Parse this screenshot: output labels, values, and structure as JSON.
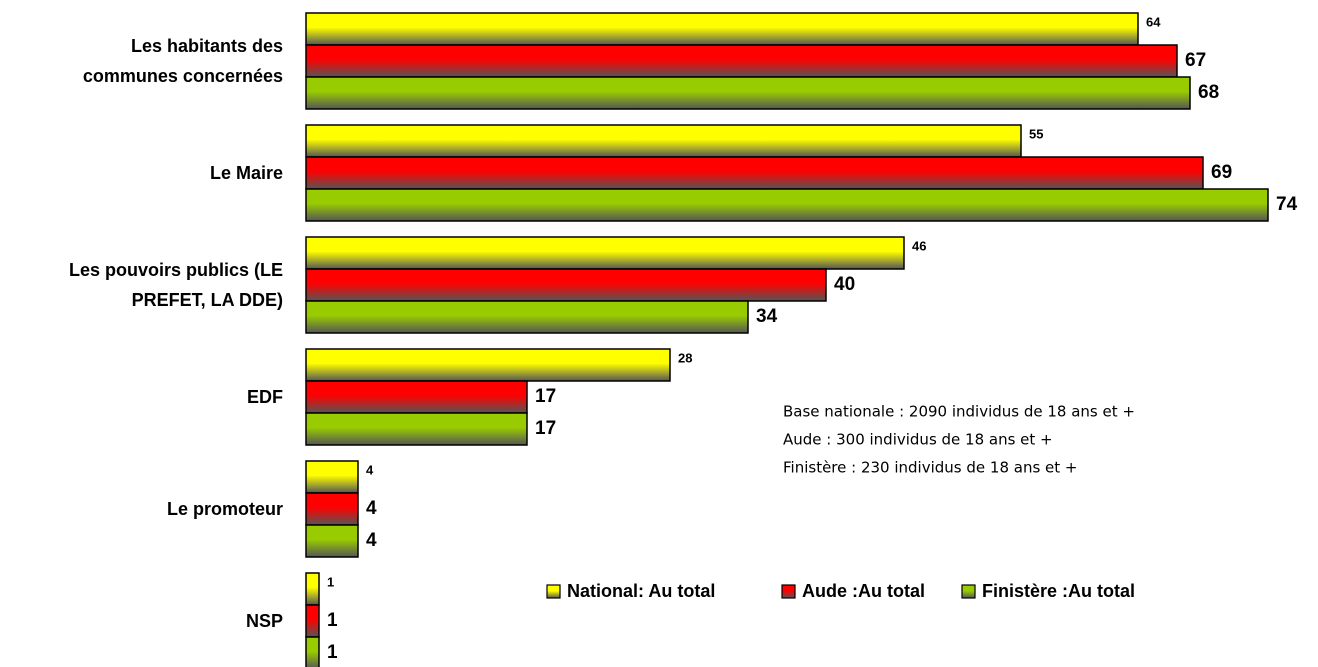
{
  "chart_data": {
    "type": "hbar",
    "categories": [
      "Les habitants des\ncommunes concernées",
      "Le Maire",
      "Les pouvoirs publics (LE\nPREFET, LA DDE)",
      "EDF",
      "Le promoteur",
      "NSP"
    ],
    "series": [
      {
        "name": "National: Au total",
        "color": "#ffff00",
        "values": [
          64,
          55,
          46,
          28,
          4,
          1
        ]
      },
      {
        "name": "Aude :Au total",
        "color": "#ff0000",
        "values": [
          67,
          69,
          40,
          17,
          4,
          1
        ]
      },
      {
        "name": "Finistère :Au total",
        "color": "#99cc00",
        "values": [
          68,
          74,
          34,
          17,
          4,
          1
        ]
      }
    ],
    "xlim": [
      0,
      78
    ],
    "annotations": [
      "Base nationale : 2090 individus de 18 ans et +",
      "Aude : 300 individus de 18 ans et +",
      "Finistère : 230  individus de 18 ans et +"
    ]
  }
}
